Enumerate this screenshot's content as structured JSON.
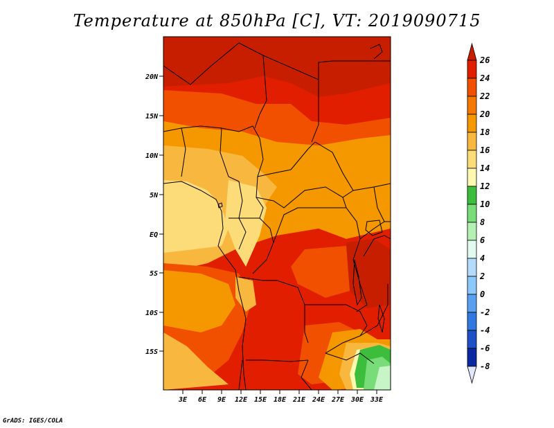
{
  "title": "Temperature at 850hPa [C], VT: 2019090715",
  "credit": "GrADS: IGES/COLA",
  "map": {
    "lon_ticks": [
      "3E",
      "6E",
      "9E",
      "12E",
      "15E",
      "18E",
      "21E",
      "24E",
      "27E",
      "30E",
      "33E"
    ],
    "lat_ticks": [
      "20N",
      "15N",
      "10N",
      "5N",
      "EQ",
      "5S",
      "10S",
      "15S"
    ],
    "colors": {
      "c26": "#c81e00",
      "c24": "#e11e00",
      "c22": "#f05000",
      "c20": "#f59800",
      "c18": "#f8b840",
      "c16": "#fcdc78",
      "c14": "#fff8b0",
      "c12": "#3cbe3c",
      "c10": "#78dc78",
      "c8": "#c8f5c8",
      "border": "#000000"
    }
  },
  "colorbar": {
    "labels": [
      "26",
      "24",
      "22",
      "20",
      "18",
      "16",
      "14",
      "12",
      "10",
      "8",
      "6",
      "4",
      "2",
      "0",
      "-2",
      "-4",
      "-6",
      "-8"
    ],
    "colors": [
      "#e11e00",
      "#f05000",
      "#f57800",
      "#f59800",
      "#f8b840",
      "#fcdc78",
      "#fff8b0",
      "#3cbe3c",
      "#78dc78",
      "#b4f0b4",
      "#e1faf0",
      "#b4dcfa",
      "#8cc8fa",
      "#5aa0f0",
      "#3278e1",
      "#1e50c8",
      "#0a28a0",
      "#000a64"
    ],
    "top_color": "#c81e00",
    "bottom_color": "#e1e6fa"
  }
}
